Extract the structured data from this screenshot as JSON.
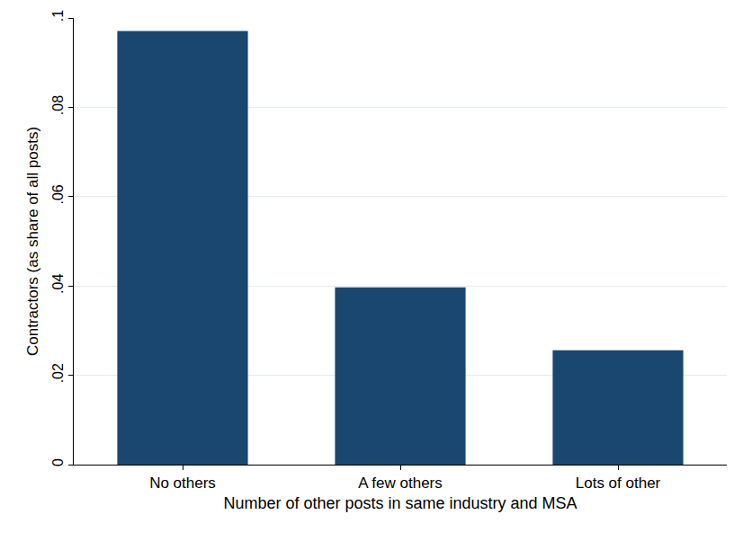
{
  "chart_data": {
    "type": "bar",
    "categories": [
      "No others",
      "A few others",
      "Lots of other"
    ],
    "values": [
      0.0971,
      0.0397,
      0.0256
    ],
    "color": "#1a476f",
    "xlabel": "Number of other posts in same industry and MSA",
    "ylabel": "Contractors (as share of all posts)",
    "ylim": [
      0,
      0.1
    ],
    "yticks": [
      0,
      {
        "value": 0.02,
        "label": ".02"
      },
      {
        "value": 0.04,
        "label": ".04"
      },
      {
        "value": 0.06,
        "label": ".06"
      },
      {
        "value": 0.08,
        "label": ".08"
      },
      {
        "value": 0.1,
        "label": ".1"
      }
    ],
    "grid": true
  }
}
